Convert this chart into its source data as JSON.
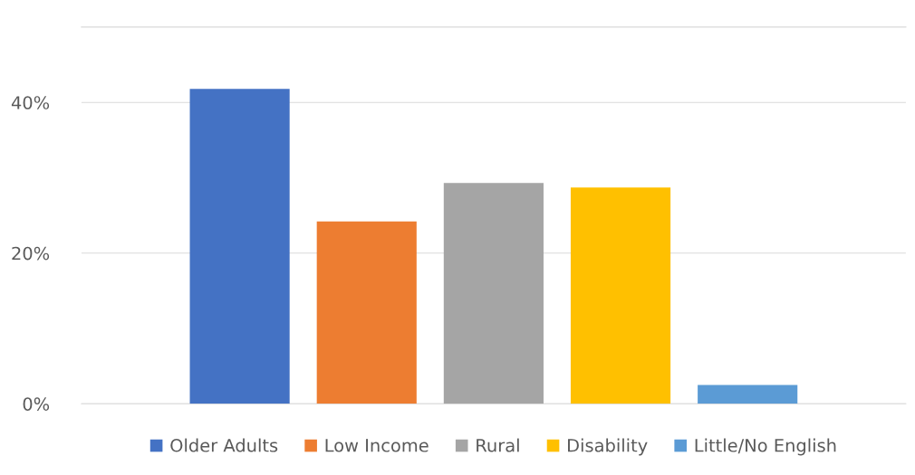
{
  "chart_data": {
    "type": "bar",
    "categories": [
      null
    ],
    "series": [
      {
        "name": "Older Adults",
        "color": "#4472c4",
        "values": [
          41.8
        ]
      },
      {
        "name": "Low Income",
        "color": "#ed7d31",
        "values": [
          24.2
        ]
      },
      {
        "name": "Rural",
        "color": "#a5a5a5",
        "values": [
          29.3
        ]
      },
      {
        "name": "Disability",
        "color": "#ffc000",
        "values": [
          28.7
        ]
      },
      {
        "name": "Little/No English",
        "color": "#5b9bd5",
        "values": [
          2.5
        ]
      }
    ],
    "ylim": [
      0,
      50
    ],
    "yticks": [
      {
        "value": 0,
        "label": "0%"
      },
      {
        "value": 20,
        "label": "20%"
      },
      {
        "value": 40,
        "label": "40%"
      }
    ],
    "grid": "y",
    "legend": "bottom"
  }
}
